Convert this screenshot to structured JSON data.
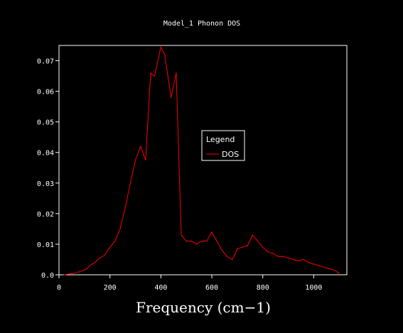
{
  "chart_data": {
    "type": "line",
    "title": "Model_1 Phonon DOS",
    "xlabel": "Frequency (cm−1)",
    "ylabel": "",
    "xlim": [
      0,
      1130
    ],
    "ylim": [
      0,
      0.075
    ],
    "x_ticks": [
      {
        "value": 0,
        "label": "0"
      },
      {
        "value": 200,
        "label": "200"
      },
      {
        "value": 400,
        "label": "400"
      },
      {
        "value": 600,
        "label": "600"
      },
      {
        "value": 800,
        "label": "800"
      },
      {
        "value": 1000,
        "label": "1000"
      }
    ],
    "y_ticks": [
      {
        "value": 0,
        "label": "0.0"
      },
      {
        "value": 0.01,
        "label": "0.01"
      },
      {
        "value": 0.02,
        "label": "0.02"
      },
      {
        "value": 0.03,
        "label": "0.03"
      },
      {
        "value": 0.04,
        "label": "0.04"
      },
      {
        "value": 0.05,
        "label": "0.05"
      },
      {
        "value": 0.06,
        "label": "0.06"
      },
      {
        "value": 0.07,
        "label": "0.07"
      }
    ],
    "grid": false,
    "legend": {
      "title": "Legend",
      "placement": "center-right"
    },
    "series": [
      {
        "name": "DOS",
        "color": "#ff0000",
        "x": [
          20,
          60,
          80,
          100,
          110,
          120,
          140,
          160,
          180,
          200,
          220,
          240,
          260,
          280,
          300,
          320,
          340,
          360,
          375,
          400,
          415,
          440,
          460,
          480,
          500,
          520,
          540,
          560,
          580,
          600,
          620,
          640,
          660,
          680,
          700,
          720,
          740,
          760,
          780,
          800,
          820,
          840,
          860,
          880,
          900,
          920,
          940,
          960,
          980,
          1000,
          1020,
          1040,
          1060,
          1080,
          1100
        ],
        "values": [
          0.0,
          0.0005,
          0.001,
          0.0015,
          0.002,
          0.003,
          0.004,
          0.0055,
          0.0065,
          0.009,
          0.011,
          0.015,
          0.022,
          0.03,
          0.0375,
          0.042,
          0.0375,
          0.066,
          0.065,
          0.0745,
          0.072,
          0.058,
          0.066,
          0.013,
          0.011,
          0.011,
          0.01,
          0.011,
          0.011,
          0.014,
          0.011,
          0.008,
          0.006,
          0.005,
          0.0085,
          0.009,
          0.0095,
          0.013,
          0.011,
          0.009,
          0.0075,
          0.007,
          0.006,
          0.006,
          0.0055,
          0.005,
          0.0045,
          0.005,
          0.004,
          0.0035,
          0.003,
          0.0025,
          0.002,
          0.0015,
          0.0005
        ]
      }
    ]
  }
}
